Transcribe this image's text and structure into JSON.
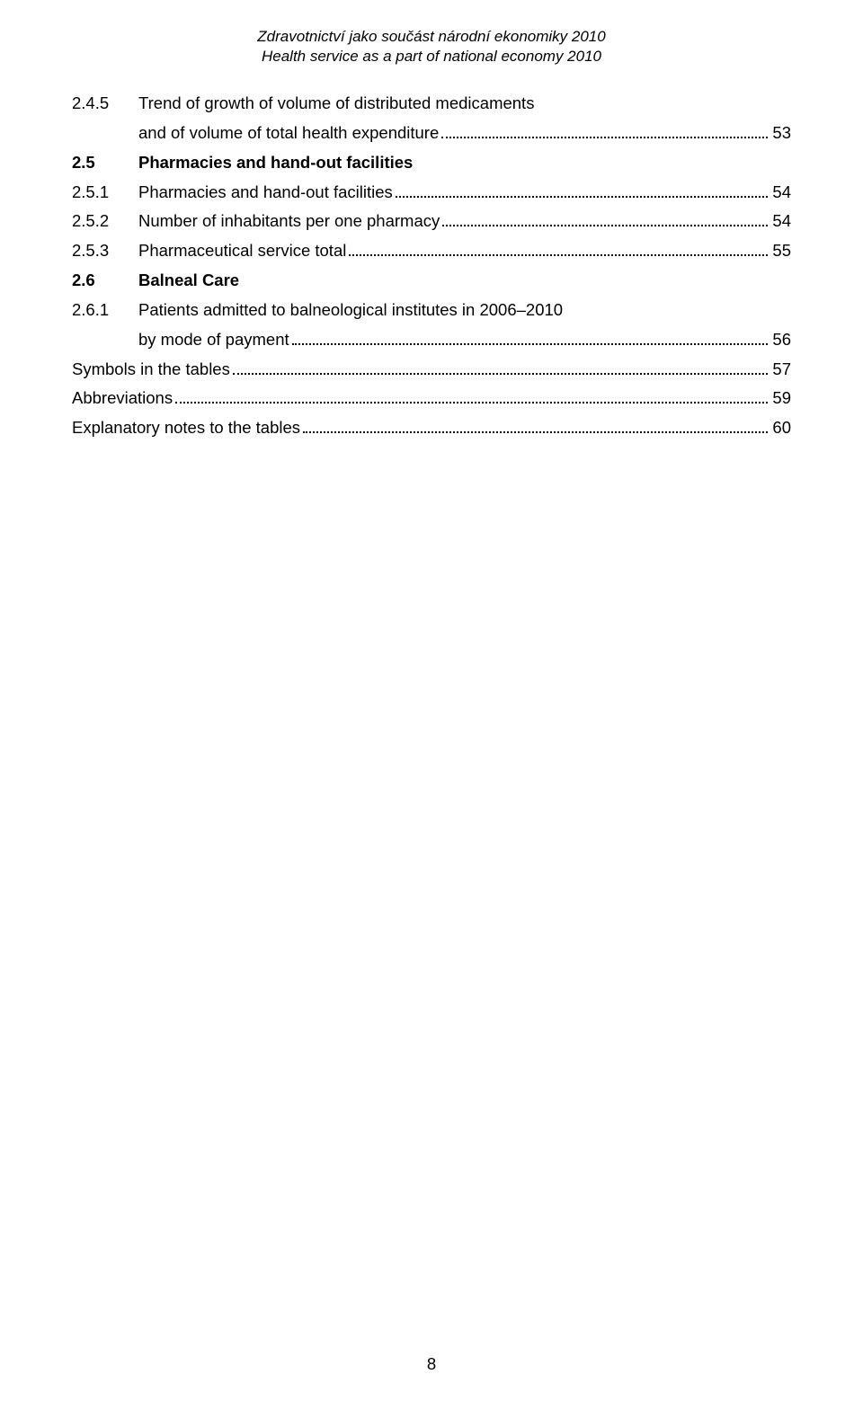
{
  "header": {
    "line1": "Zdravotnictví jako součást národní ekonomiky 2010",
    "line2": "Health service as a part of national economy 2010"
  },
  "toc": {
    "e0": {
      "num": "2.4.5",
      "label_l1": "Trend of growth of volume of distributed medicaments",
      "label_l2": "and of volume of total health expenditure",
      "page": "53"
    },
    "e1": {
      "num": "2.5",
      "label": "Pharmacies and hand-out facilities"
    },
    "e2": {
      "num": "2.5.1",
      "label": "Pharmacies and hand-out facilities",
      "page": "54"
    },
    "e3": {
      "num": "2.5.2",
      "label": "Number of inhabitants per one pharmacy",
      "page": "54"
    },
    "e4": {
      "num": "2.5.3",
      "label": "Pharmaceutical service total",
      "page": "55"
    },
    "e5": {
      "num": "2.6",
      "label": "Balneal Care"
    },
    "e6": {
      "num": "2.6.1",
      "label_l1": "Patients admitted to balneological institutes in 2006–2010",
      "label_l2": "by mode of payment",
      "page": "56"
    },
    "e7": {
      "label": "Symbols in the tables",
      "page": "57"
    },
    "e8": {
      "label": "Abbreviations",
      "page": "59"
    },
    "e9": {
      "label": "Explanatory notes to the tables",
      "page": "60"
    }
  },
  "page_number": "8"
}
